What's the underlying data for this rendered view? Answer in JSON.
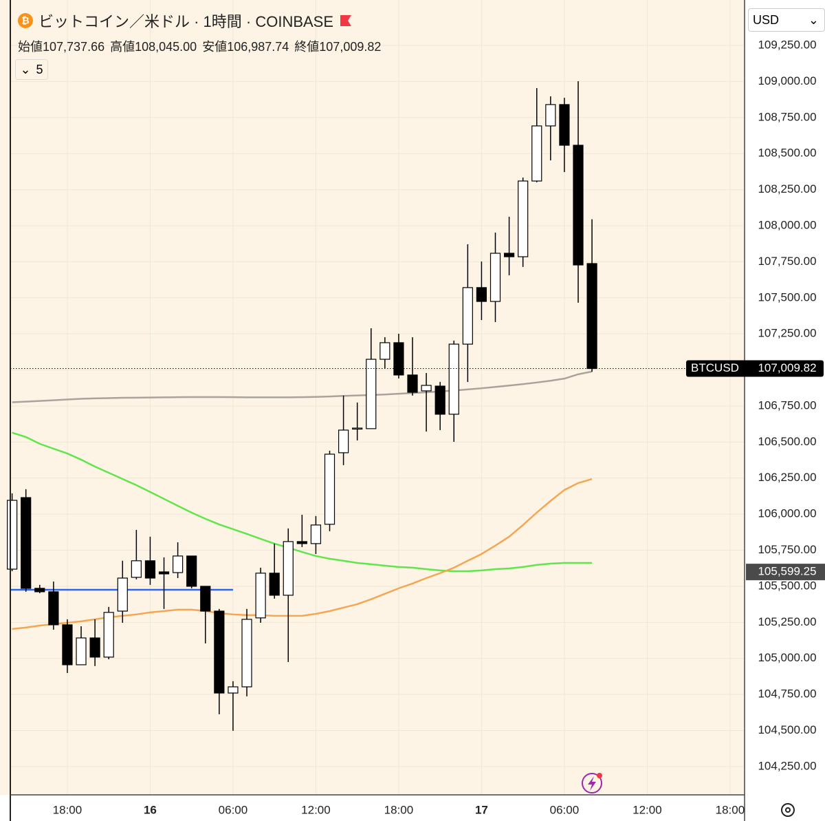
{
  "chart_data": {
    "type": "candlestick",
    "title": "ビットコイン／米ドル · 1時間 · COINBASE",
    "ohlc_legend": [
      {
        "name": "始値",
        "text": "107,737.66"
      },
      {
        "name": "高値",
        "text": "108,045.00"
      },
      {
        "name": "安値",
        "text": "106,987.74"
      },
      {
        "name": "終値",
        "text": "107,009.82"
      }
    ],
    "indicator_count": "5",
    "currency": "USD",
    "xlim": [
      13.87,
      67.05
    ],
    "xticks": [
      {
        "value": 18,
        "label": "18:00"
      },
      {
        "value": 24,
        "label": "16"
      },
      {
        "value": 30,
        "label": "06:00"
      },
      {
        "value": 36,
        "label": "12:00"
      },
      {
        "value": 42,
        "label": "18:00"
      },
      {
        "value": 48,
        "label": "17"
      },
      {
        "value": 54,
        "label": "06:00"
      },
      {
        "value": 60,
        "label": "12:00"
      },
      {
        "value": 66,
        "label": "18:00"
      }
    ],
    "ylim": [
      104054,
      109565
    ],
    "yticks": [
      {
        "value": 104250,
        "label": "104,250.00"
      },
      {
        "value": 104500,
        "label": "104,500.00"
      },
      {
        "value": 104750,
        "label": "104,750.00"
      },
      {
        "value": 105000,
        "label": "105,000.00"
      },
      {
        "value": 105250,
        "label": "105,250.00"
      },
      {
        "value": 105500,
        "label": "105,500.00"
      },
      {
        "value": 105750,
        "label": "105,750.00"
      },
      {
        "value": 106000,
        "label": "106,000.00"
      },
      {
        "value": 106250,
        "label": "106,250.00"
      },
      {
        "value": 106500,
        "label": "106,500.00"
      },
      {
        "value": 106750,
        "label": "106,750.00"
      },
      {
        "value": 107000,
        "label": "107,000.00"
      },
      {
        "value": 107250,
        "label": "107,250.00"
      },
      {
        "value": 107500,
        "label": "107,500.00"
      },
      {
        "value": 107750,
        "label": "107,750.00"
      },
      {
        "value": 108000,
        "label": "108,000.00"
      },
      {
        "value": 108250,
        "label": "108,250.00"
      },
      {
        "value": 108500,
        "label": "108,500.00"
      },
      {
        "value": 108750,
        "label": "108,750.00"
      },
      {
        "value": 109000,
        "label": "109,000.00"
      },
      {
        "value": 109250,
        "label": "109,250.00"
      }
    ],
    "grid": true,
    "up_color": "#ffffff",
    "down_color": "#000000",
    "x": [
      14,
      15,
      16,
      17,
      18,
      19,
      20,
      21,
      22,
      23,
      24,
      25,
      26,
      27,
      28,
      29,
      30,
      31,
      32,
      33,
      34,
      35,
      36,
      37,
      38,
      39,
      40,
      41,
      42,
      43,
      44,
      45,
      46,
      47,
      48,
      49,
      50,
      51,
      52,
      53,
      54,
      55,
      56
    ],
    "open": [
      105619,
      106115,
      105486,
      105462,
      105233,
      104956,
      105142,
      105009,
      105328,
      105562,
      105677,
      105600,
      105595,
      105710,
      105500,
      105328,
      104760,
      104803,
      105281,
      105591,
      105438,
      105810,
      105796,
      105930,
      106426,
      106593,
      106593,
      107074,
      107189,
      106965,
      106855,
      106888,
      106693,
      107179,
      107571,
      107475,
      107809,
      107785,
      108310,
      108692,
      108840,
      108558,
      107737.66
    ],
    "high": [
      106144,
      106173,
      105510,
      105533,
      105271,
      105223,
      105271,
      105357,
      105677,
      105891,
      105844,
      105700,
      105805,
      105710,
      105500,
      105343,
      104842,
      105343,
      105629,
      105796,
      105901,
      105996,
      105987,
      106440,
      106822,
      106774,
      107289,
      107227,
      107251,
      107227,
      106979,
      106917,
      107203,
      107871,
      107752,
      107952,
      108062,
      108334,
      108954,
      108897,
      108887,
      109002,
      108045.0
    ],
    "low": [
      105605,
      105462,
      105452,
      105199,
      104899,
      104956,
      104947,
      104994,
      105247,
      105548,
      105510,
      105343,
      105557,
      105486,
      105104,
      104613,
      104498,
      104737,
      105247,
      105414,
      104975,
      105772,
      105724,
      105882,
      106340,
      106511,
      106593,
      107012,
      106941,
      106822,
      106573,
      106583,
      106502,
      106917,
      107346,
      107332,
      107656,
      107714,
      108301,
      108453,
      108372,
      107466,
      106987.74
    ],
    "close": [
      106096,
      105486,
      105462,
      105233,
      104956,
      105142,
      105009,
      105319,
      105557,
      105677,
      105557,
      105586,
      105710,
      105500,
      105328,
      104760,
      104803,
      105271,
      105591,
      105438,
      105810,
      105796,
      105925,
      106416,
      106583,
      106597,
      107074,
      107189,
      106965,
      106845,
      106893,
      106693,
      107179,
      107571,
      107475,
      107809,
      107785,
      108310,
      108692,
      108840,
      108558,
      107728,
      107009.82
    ],
    "lines": [
      {
        "color": "#aaa39c",
        "values": [
          106776,
          106780,
          106785,
          106790,
          106795,
          106800,
          106803,
          106805,
          106807,
          106808,
          106809,
          106810,
          106811,
          106812,
          106812,
          106812,
          106811,
          106810,
          106810,
          106810,
          106810,
          106811,
          106813,
          106816,
          106820,
          106823,
          106826,
          106830,
          106835,
          106840,
          106845,
          106851,
          106857,
          106865,
          106873,
          106882,
          106892,
          106902,
          106913,
          106925,
          106940,
          106970,
          106989
        ]
      },
      {
        "color": "#5ee64a",
        "values": [
          106565,
          106535,
          106488,
          106454,
          106421,
          106378,
          106330,
          106287,
          106244,
          106201,
          106154,
          106106,
          106058,
          106011,
          105968,
          105929,
          105896,
          105863,
          105829,
          105796,
          105767,
          105738,
          105710,
          105691,
          105677,
          105662,
          105653,
          105643,
          105634,
          105629,
          105619,
          105610,
          105605,
          105605,
          105610,
          105619,
          105624,
          105634,
          105648,
          105657,
          105662,
          105662,
          105662
        ]
      },
      {
        "color": "#f5a653",
        "values": [
          105204,
          105214,
          105228,
          105238,
          105247,
          105257,
          105271,
          105285,
          105295,
          105305,
          105319,
          105328,
          105338,
          105338,
          105328,
          105314,
          105305,
          105300,
          105300,
          105295,
          105295,
          105295,
          105309,
          105328,
          105352,
          105376,
          105410,
          105448,
          105486,
          105519,
          105557,
          105591,
          105629,
          105677,
          105724,
          105782,
          105844,
          105925,
          106011,
          106092,
          106168,
          106216,
          106244
        ]
      }
    ],
    "level_line": {
      "color": "#2962ff",
      "value": 105476,
      "from": 13.87,
      "to": 30
    },
    "last_price": {
      "name": "BTCUSD",
      "value": 107009.82,
      "label": "107,009.82"
    },
    "price_marker": {
      "value": 105599.25,
      "label": "105,599.25"
    }
  }
}
